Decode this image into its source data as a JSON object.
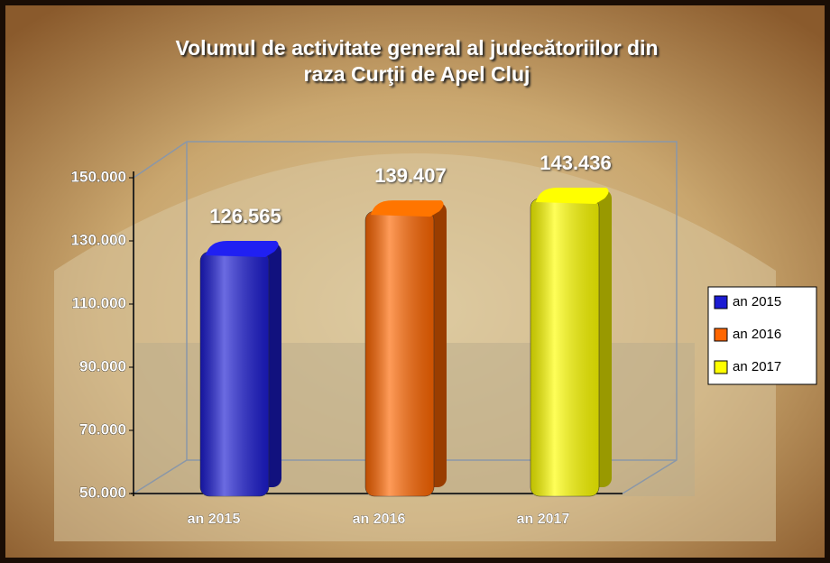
{
  "chart_data": {
    "type": "bar",
    "title": [
      "Volumul de activitate general al judecătoriilor din",
      "raza Curţii de Apel Cluj"
    ],
    "categories": [
      "an 2015",
      "an 2016",
      "an 2017"
    ],
    "values": [
      126565,
      139407,
      143436
    ],
    "value_labels": [
      "126.565",
      "139.407",
      "143.436"
    ],
    "colors": [
      "#1c1cd2",
      "#ff6600",
      "#ffff00"
    ],
    "ylim": [
      50000,
      150000
    ],
    "yticks": [
      {
        "value": 50000,
        "label": "50.000"
      },
      {
        "value": 70000,
        "label": "70.000"
      },
      {
        "value": 90000,
        "label": "90.000"
      },
      {
        "value": 110000,
        "label": "110.000"
      },
      {
        "value": 130000,
        "label": "130.000"
      },
      {
        "value": 150000,
        "label": "150.000"
      }
    ],
    "legend": "right"
  }
}
